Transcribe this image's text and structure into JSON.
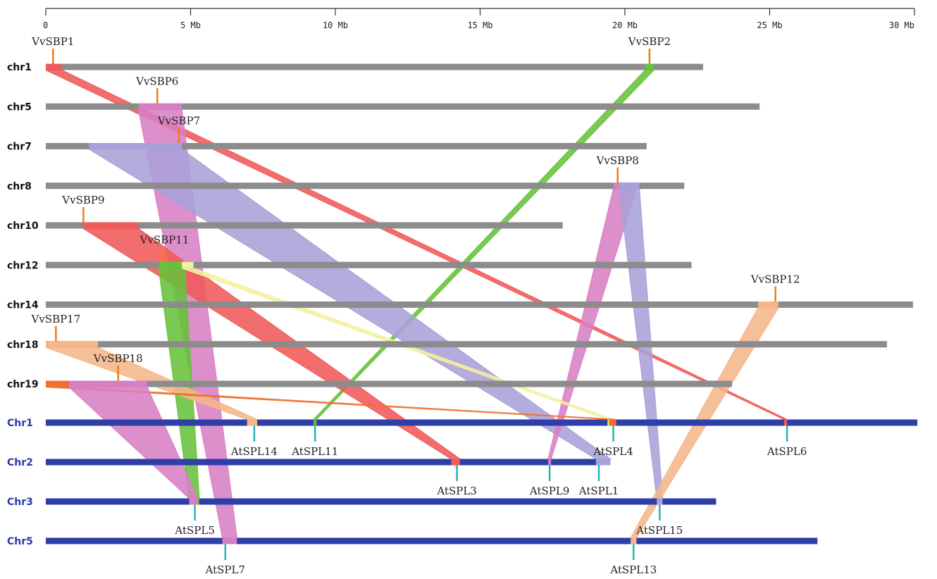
{
  "axis": {
    "ticks": [
      {
        "mb": 0,
        "label": "0"
      },
      {
        "mb": 5,
        "label": "5 Mb"
      },
      {
        "mb": 10,
        "label": "10 Mb"
      },
      {
        "mb": 15,
        "label": "15 Mb"
      },
      {
        "mb": 20,
        "label": "20 Mb"
      },
      {
        "mb": 25,
        "label": "25 Mb"
      },
      {
        "mb": 30,
        "label": "30 Mb"
      }
    ],
    "max_mb": 30
  },
  "colors": {
    "grape_chr": "#8c8c8c",
    "arabidopsis_chr": "#2e3fa8",
    "grape_marker": "#f07c12",
    "arabidopsis_marker": "#21b5b5",
    "red": "#f05a5a",
    "green": "#66c23a",
    "purple": "#a8a0d8",
    "pink": "#d77fc4",
    "yellow": "#f3f0a0",
    "orange": "#f4b68a",
    "orange_dark": "#f07030"
  },
  "grape_chromosomes": [
    {
      "id": "chr1",
      "label": "chr1",
      "length": 22.7
    },
    {
      "id": "chr5",
      "label": "chr5",
      "length": 24.65
    },
    {
      "id": "chr7",
      "label": "chr7",
      "length": 20.75
    },
    {
      "id": "chr8",
      "label": "chr8",
      "length": 22.05
    },
    {
      "id": "chr10",
      "label": "chr10",
      "length": 17.85
    },
    {
      "id": "chr12",
      "label": "chr12",
      "length": 22.3
    },
    {
      "id": "chr14",
      "label": "chr14",
      "length": 29.95
    },
    {
      "id": "chr18",
      "label": "chr18",
      "length": 29.05
    },
    {
      "id": "chr19",
      "label": "chr19",
      "length": 23.7
    }
  ],
  "arabidopsis_chromosomes": [
    {
      "id": "Chr1",
      "label": "Chr1",
      "length": 30.1
    },
    {
      "id": "Chr2",
      "label": "Chr2",
      "length": 19.45
    },
    {
      "id": "Chr3",
      "label": "Chr3",
      "length": 23.15
    },
    {
      "id": "Chr5",
      "label": "Chr5",
      "length": 26.65
    }
  ],
  "grape_genes": [
    {
      "name": "VvSBP1",
      "chr": "chr1",
      "pos": 0.25
    },
    {
      "name": "VvSBP2",
      "chr": "chr1",
      "pos": 20.85
    },
    {
      "name": "VvSBP6",
      "chr": "chr5",
      "pos": 3.85
    },
    {
      "name": "VvSBP7",
      "chr": "chr7",
      "pos": 4.6
    },
    {
      "name": "VvSBP8",
      "chr": "chr8",
      "pos": 19.75
    },
    {
      "name": "VvSBP9",
      "chr": "chr10",
      "pos": 1.3
    },
    {
      "name": "VvSBP11",
      "chr": "chr12",
      "pos": 4.1
    },
    {
      "name": "VvSBP12",
      "chr": "chr14",
      "pos": 25.2
    },
    {
      "name": "VvSBP17",
      "chr": "chr18",
      "pos": 0.35
    },
    {
      "name": "VvSBP18",
      "chr": "chr19",
      "pos": 2.5
    }
  ],
  "arabidopsis_genes": [
    {
      "name": "AtSPL14",
      "chr": "Chr1",
      "pos": 7.2
    },
    {
      "name": "AtSPL11",
      "chr": "Chr1",
      "pos": 9.3
    },
    {
      "name": "AtSPL4",
      "chr": "Chr1",
      "pos": 19.6
    },
    {
      "name": "AtSPL6",
      "chr": "Chr1",
      "pos": 25.6
    },
    {
      "name": "AtSPL3",
      "chr": "Chr2",
      "pos": 14.2
    },
    {
      "name": "AtSPL9",
      "chr": "Chr2",
      "pos": 17.4
    },
    {
      "name": "AtSPL1",
      "chr": "Chr2",
      "pos": 19.1
    },
    {
      "name": "AtSPL5",
      "chr": "Chr3",
      "pos": 5.15
    },
    {
      "name": "AtSPL15",
      "chr": "Chr3",
      "pos": 21.2
    },
    {
      "name": "AtSPL7",
      "chr": "Chr5",
      "pos": 6.2
    },
    {
      "name": "AtSPL13",
      "chr": "Chr5",
      "pos": 20.3
    }
  ],
  "synteny_links": [
    {
      "from_chr": "chr1",
      "from": [
        0.0,
        0.55
      ],
      "to_chr": "Chr1",
      "to": [
        25.5,
        25.6
      ],
      "color": "red"
    },
    {
      "from_chr": "chr1",
      "from": [
        20.7,
        21.0
      ],
      "to_chr": "Chr1",
      "to": [
        9.25,
        9.35
      ],
      "color": "green"
    },
    {
      "from_chr": "chr5",
      "from": [
        3.2,
        4.7
      ],
      "to_chr": "Chr5",
      "to": [
        6.1,
        6.6
      ],
      "color": "pink"
    },
    {
      "from_chr": "chr7",
      "from": [
        1.5,
        4.7
      ],
      "to_chr": "Chr2",
      "to": [
        19.0,
        19.5
      ],
      "color": "purple"
    },
    {
      "from_chr": "chr8",
      "from": [
        19.6,
        20.4
      ],
      "to_chr": "Chr2",
      "to": [
        17.35,
        17.45
      ],
      "color": "pink"
    },
    {
      "from_chr": "chr8",
      "from": [
        19.8,
        20.5
      ],
      "to_chr": "Chr3",
      "to": [
        21.1,
        21.3
      ],
      "color": "purple"
    },
    {
      "from_chr": "chr10",
      "from": [
        1.3,
        3.2
      ],
      "to_chr": "Chr2",
      "to": [
        14.0,
        14.3
      ],
      "color": "red"
    },
    {
      "from_chr": "chr12",
      "from": [
        3.9,
        4.8
      ],
      "to_chr": "Chr3",
      "to": [
        4.95,
        5.3
      ],
      "color": "green"
    },
    {
      "from_chr": "chr12",
      "from": [
        4.7,
        5.1
      ],
      "to_chr": "Chr1",
      "to": [
        19.4,
        19.6
      ],
      "color": "yellow"
    },
    {
      "from_chr": "chr14",
      "from": [
        24.6,
        25.3
      ],
      "to_chr": "Chr5",
      "to": [
        20.2,
        20.4
      ],
      "color": "orange"
    },
    {
      "from_chr": "chr18",
      "from": [
        0.0,
        1.8
      ],
      "to_chr": "Chr1",
      "to": [
        6.95,
        7.3
      ],
      "color": "orange"
    },
    {
      "from_chr": "chr19",
      "from": [
        0.0,
        0.8
      ],
      "to_chr": "Chr1",
      "to": [
        19.45,
        19.7
      ],
      "color": "orange_dark"
    },
    {
      "from_chr": "chr19",
      "from": [
        0.8,
        3.5
      ],
      "to_chr": "Chr3",
      "to": [
        4.95,
        5.25
      ],
      "color": "pink"
    }
  ]
}
